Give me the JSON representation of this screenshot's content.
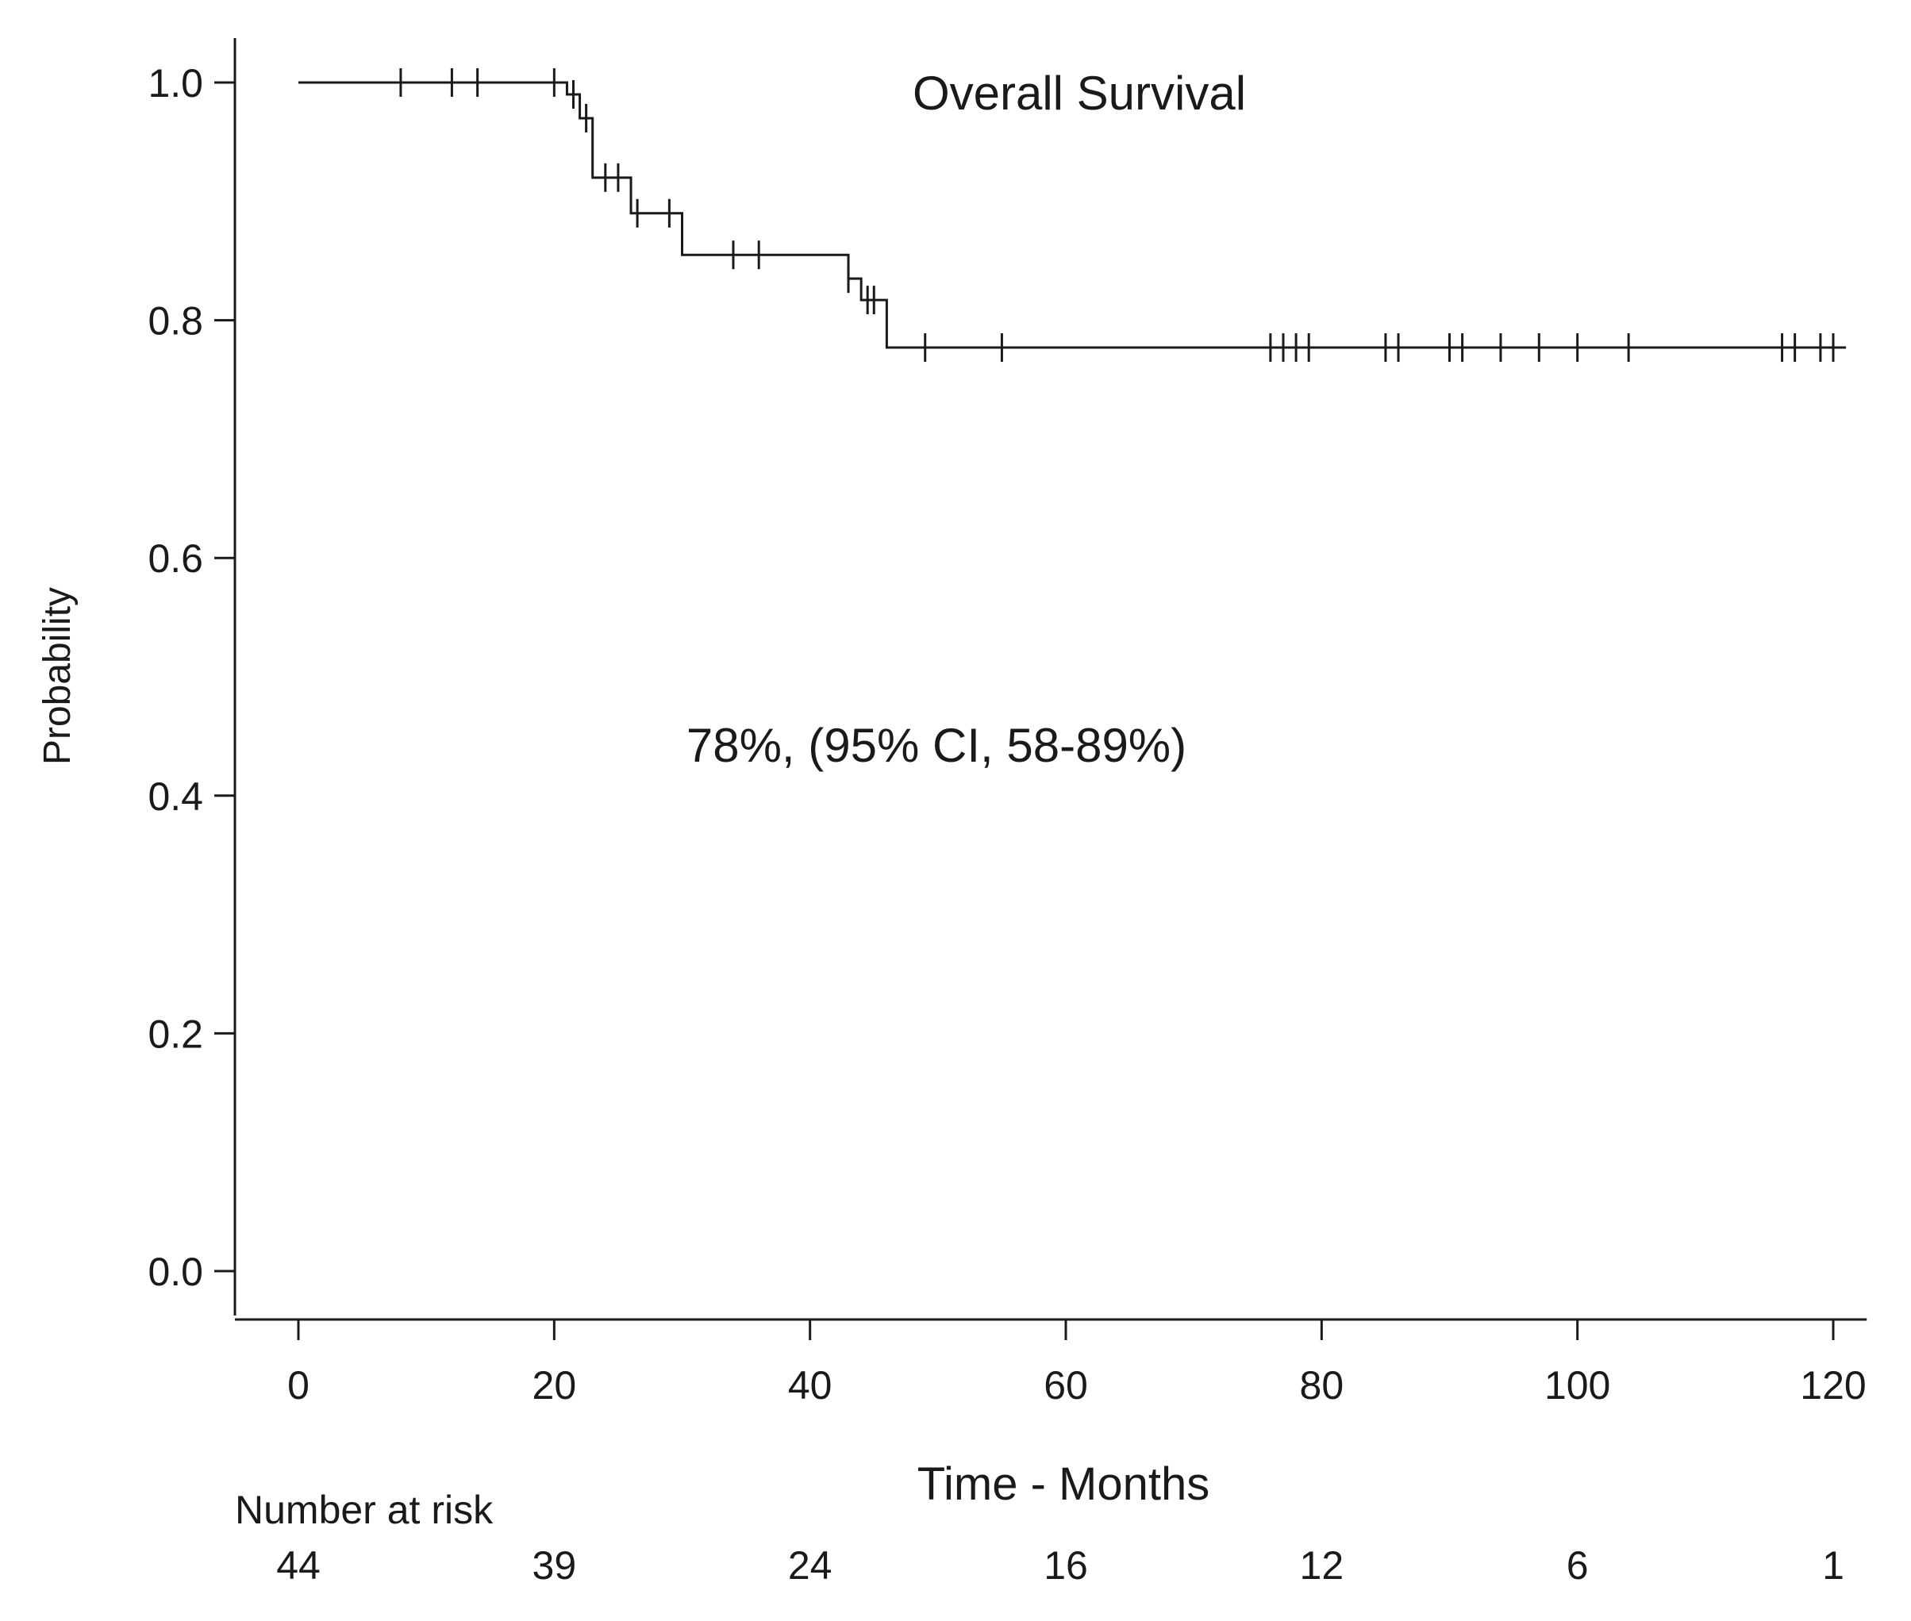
{
  "chart_data": {
    "type": "line",
    "subtype": "kaplan-meier",
    "title": "Overall Survival",
    "annotation": "78%, (95% CI, 58-89%)",
    "xlabel": "Time - Months",
    "ylabel": "Probability",
    "xlim": [
      0,
      122
    ],
    "ylim": [
      0,
      1.0
    ],
    "xticks": [
      0,
      20,
      40,
      60,
      80,
      100,
      120
    ],
    "xtick_labels": [
      "0",
      "20",
      "40",
      "60",
      "80",
      "100",
      "120"
    ],
    "yticks": [
      0.0,
      0.2,
      0.4,
      0.6,
      0.8,
      1.0
    ],
    "ytick_labels": [
      "0.0",
      "0.2",
      "0.4",
      "0.6",
      "0.8",
      "1.0"
    ],
    "grid": false,
    "series": [
      {
        "name": "Overall Survival",
        "steps": [
          {
            "t": 0,
            "s": 1.0
          },
          {
            "t": 21,
            "s": 0.99
          },
          {
            "t": 22,
            "s": 0.97
          },
          {
            "t": 23,
            "s": 0.92
          },
          {
            "t": 26,
            "s": 0.89
          },
          {
            "t": 30,
            "s": 0.855
          },
          {
            "t": 43,
            "s": 0.835
          },
          {
            "t": 44,
            "s": 0.817
          },
          {
            "t": 46,
            "s": 0.777
          }
        ],
        "end_t": 121,
        "censored": [
          {
            "t": 8,
            "s": 1.0
          },
          {
            "t": 12,
            "s": 1.0
          },
          {
            "t": 14,
            "s": 1.0
          },
          {
            "t": 20,
            "s": 1.0
          },
          {
            "t": 21.5,
            "s": 0.99
          },
          {
            "t": 22.5,
            "s": 0.97
          },
          {
            "t": 24,
            "s": 0.92
          },
          {
            "t": 25,
            "s": 0.92
          },
          {
            "t": 26.5,
            "s": 0.89
          },
          {
            "t": 29,
            "s": 0.89
          },
          {
            "t": 34,
            "s": 0.855
          },
          {
            "t": 36,
            "s": 0.855
          },
          {
            "t": 43,
            "s": 0.835
          },
          {
            "t": 44.5,
            "s": 0.817
          },
          {
            "t": 45,
            "s": 0.817
          },
          {
            "t": 49,
            "s": 0.777
          },
          {
            "t": 55,
            "s": 0.777
          },
          {
            "t": 76,
            "s": 0.777
          },
          {
            "t": 77,
            "s": 0.777
          },
          {
            "t": 78,
            "s": 0.777
          },
          {
            "t": 79,
            "s": 0.777
          },
          {
            "t": 85,
            "s": 0.777
          },
          {
            "t": 86,
            "s": 0.777
          },
          {
            "t": 90,
            "s": 0.777
          },
          {
            "t": 91,
            "s": 0.777
          },
          {
            "t": 94,
            "s": 0.777
          },
          {
            "t": 97,
            "s": 0.777
          },
          {
            "t": 100,
            "s": 0.777
          },
          {
            "t": 104,
            "s": 0.777
          },
          {
            "t": 116,
            "s": 0.777
          },
          {
            "t": 117,
            "s": 0.777
          },
          {
            "t": 119,
            "s": 0.777
          },
          {
            "t": 120,
            "s": 0.777
          }
        ]
      }
    ],
    "risk_table": {
      "label": "Number at risk",
      "times": [
        0,
        20,
        40,
        60,
        80,
        100,
        120
      ],
      "values": [
        "44",
        "39",
        "24",
        "16",
        "12",
        "6",
        "1"
      ]
    }
  }
}
